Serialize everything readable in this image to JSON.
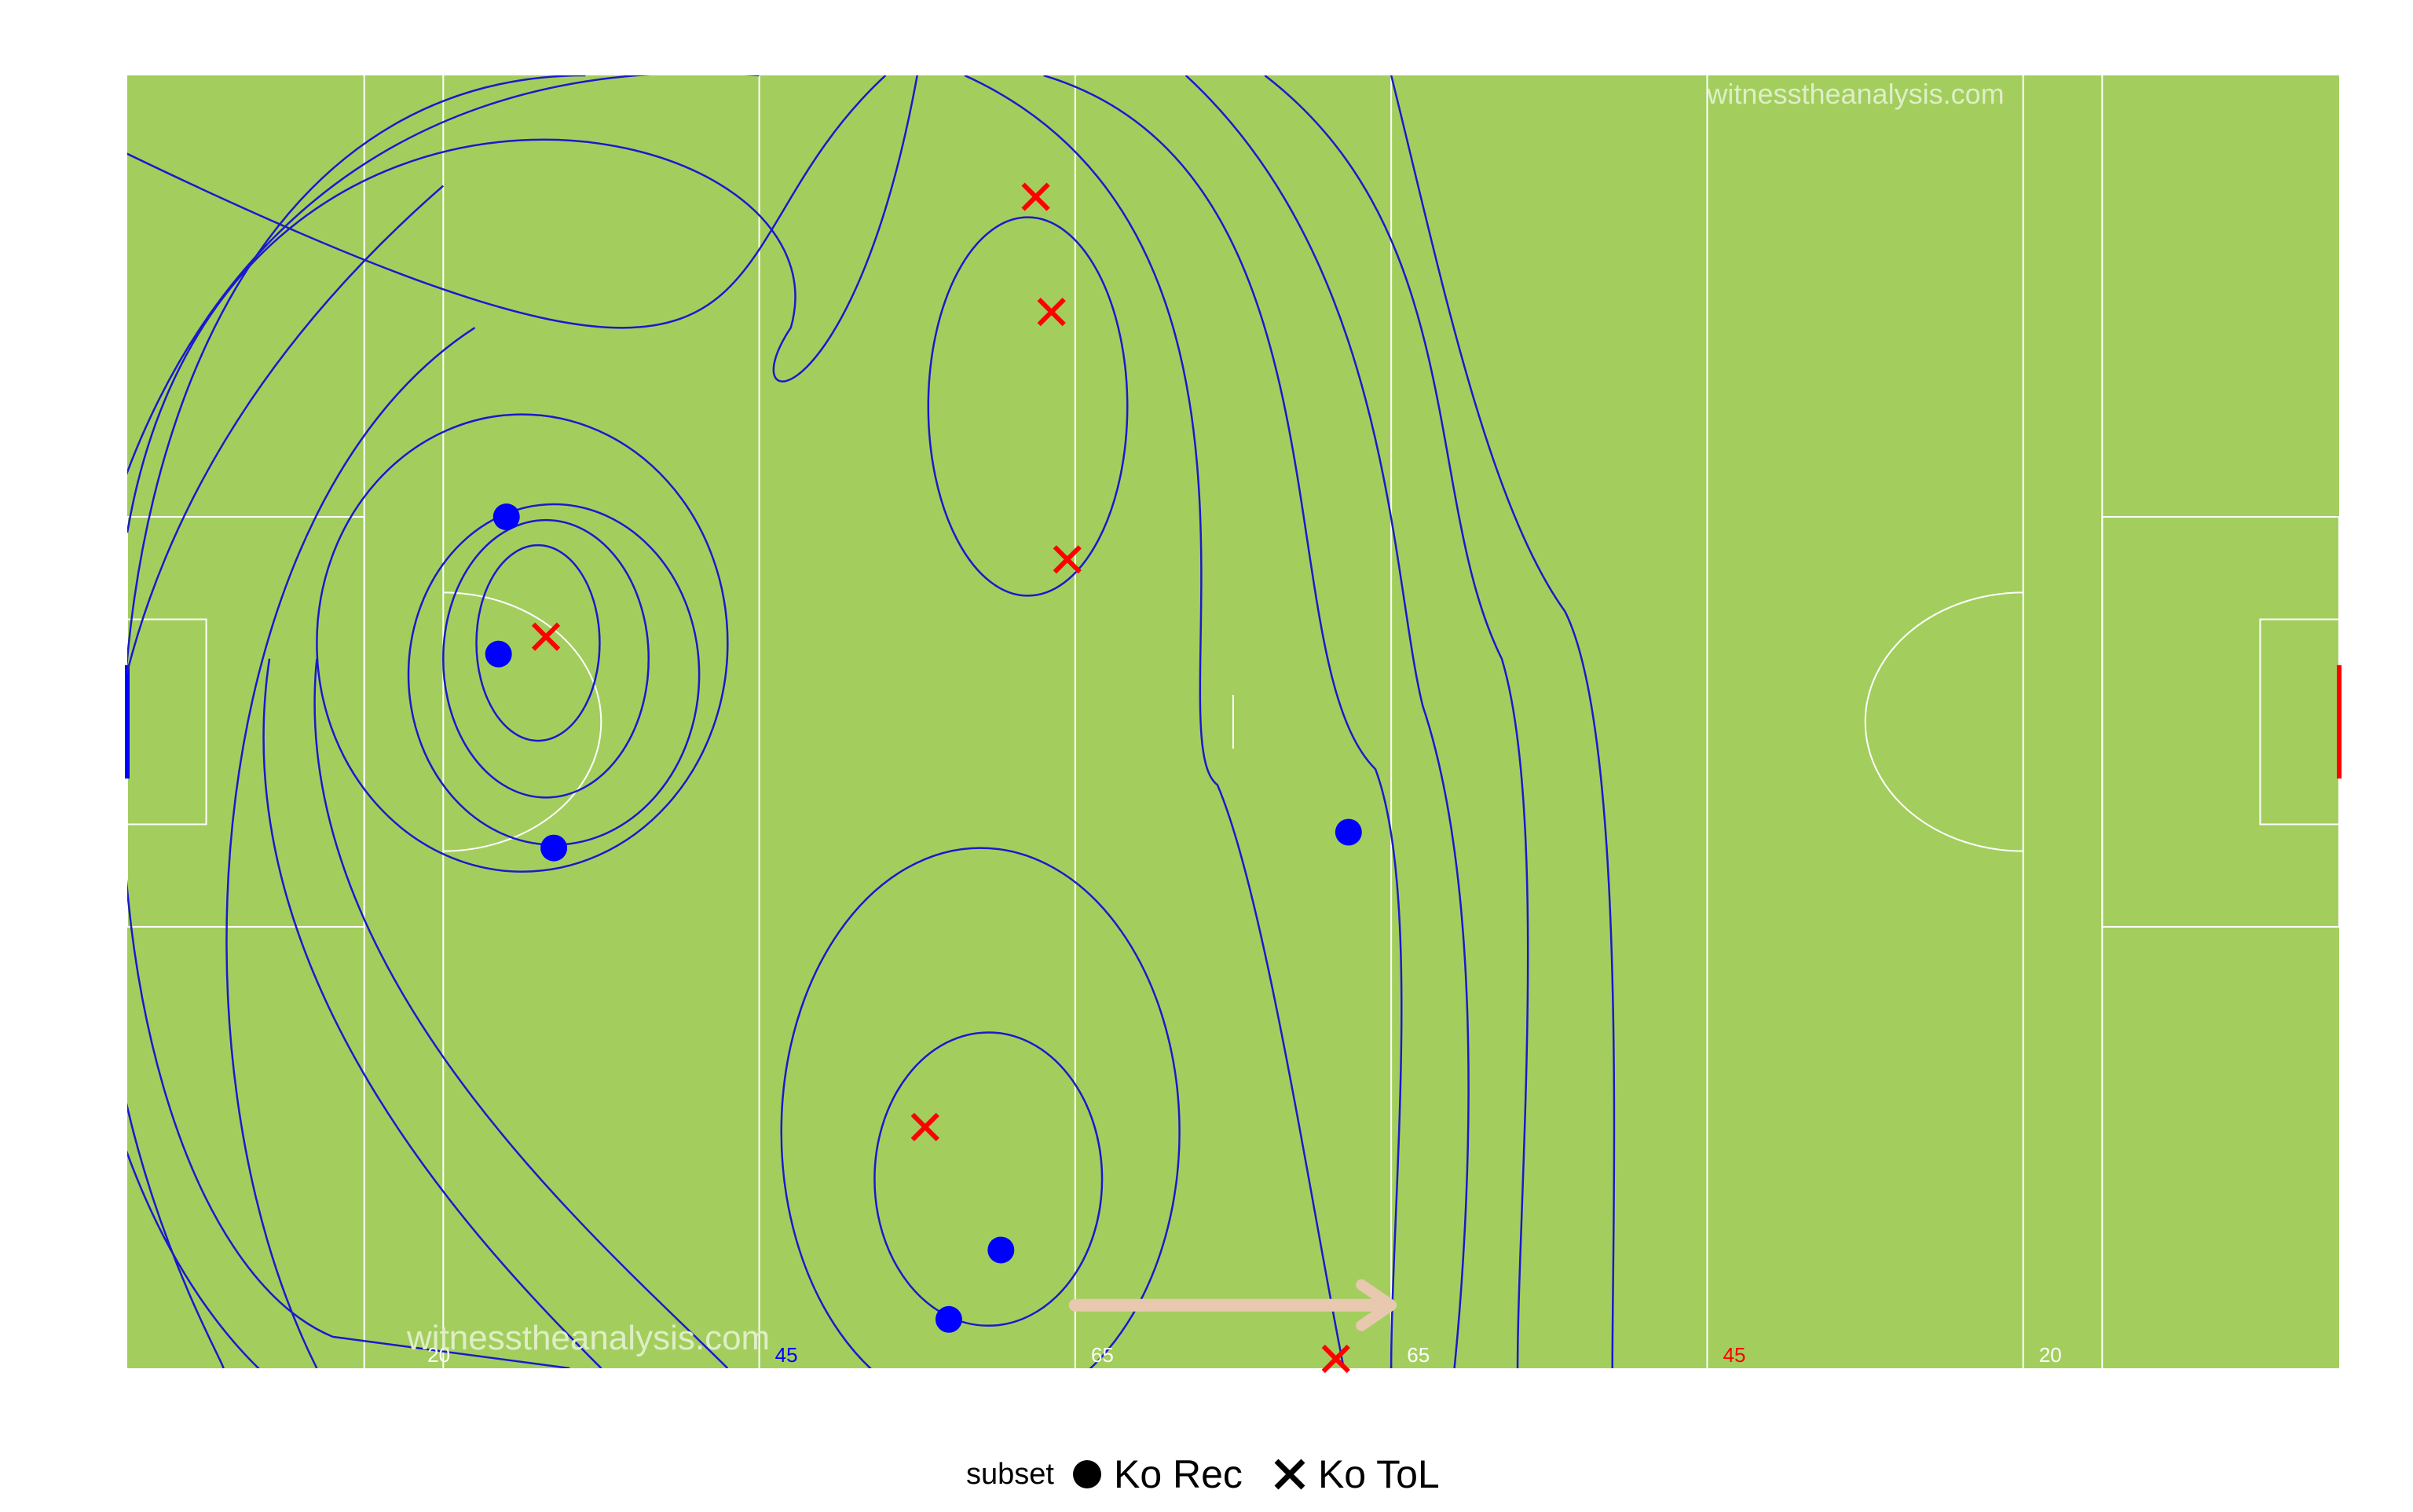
{
  "chart_data": {
    "type": "scatter",
    "title": "",
    "xlabel": "",
    "ylabel": "",
    "xlim": [
      0,
      140
    ],
    "ylim": [
      0,
      82
    ],
    "grid": false,
    "legend_position": "bottom",
    "legend_title": "subset",
    "pitch": {
      "background": "#a3ce5e",
      "line_color": "#ffffff",
      "contour_color": "#1a1acc",
      "left_goal_color": "#0000ff",
      "right_goal_color": "#ff0000",
      "line_labels": [
        {
          "x": 19,
          "text": "20",
          "color": "#ffffff"
        },
        {
          "x": 41,
          "text": "45",
          "color": "#0000ff"
        },
        {
          "x": 61,
          "text": "65",
          "color": "#ffffff"
        },
        {
          "x": 81,
          "text": "65",
          "color": "#ffffff"
        },
        {
          "x": 101,
          "text": "45",
          "color": "#ff0000"
        },
        {
          "x": 121,
          "text": "20",
          "color": "#ffffff"
        }
      ],
      "watermarks": [
        "witnesstheanalysis.com",
        "witnesstheanalysis.com"
      ],
      "direction_arrow": {
        "from": [
          60,
          4
        ],
        "to": [
          80,
          4
        ],
        "color": "#e8c9b0"
      }
    },
    "series": [
      {
        "name": "Ko Rec",
        "marker": "circle",
        "color": "#0000ff",
        "points": [
          {
            "x": 24,
            "y": 54
          },
          {
            "x": 23.5,
            "y": 45.3
          },
          {
            "x": 27,
            "y": 33
          },
          {
            "x": 77.3,
            "y": 34
          },
          {
            "x": 55.3,
            "y": 7.5
          },
          {
            "x": 52,
            "y": 3.1
          }
        ]
      },
      {
        "name": "Ko ToL",
        "marker": "cross",
        "color": "#ff0000",
        "points": [
          {
            "x": 57.5,
            "y": 74.3
          },
          {
            "x": 58.5,
            "y": 67
          },
          {
            "x": 59.5,
            "y": 51.3
          },
          {
            "x": 26.5,
            "y": 46.4
          },
          {
            "x": 50.5,
            "y": 15.3
          },
          {
            "x": 76.5,
            "y": 0.6
          }
        ]
      }
    ],
    "density_contours": [
      {
        "cx": 26,
        "cy": 46,
        "rx": 3.9,
        "ry": 6.2,
        "smooth": 1
      },
      {
        "cx": 26.5,
        "cy": 45,
        "rx": 6.5,
        "ry": 8.8,
        "smooth": 1
      },
      {
        "cx": 27,
        "cy": 44,
        "rx": 9.2,
        "ry": 10.8,
        "smooth": 1
      },
      {
        "cx": 25,
        "cy": 46,
        "rx": 13,
        "ry": 14.5,
        "smooth": 1
      },
      {
        "cx": 57,
        "cy": 61,
        "rx": 6.3,
        "ry": 12,
        "smooth": 1
      },
      {
        "cx": 54.5,
        "cy": 12,
        "rx": 7.2,
        "ry": 9.3,
        "smooth": 1
      },
      {
        "cx": 54,
        "cy": 15,
        "rx": 12.6,
        "ry": 18,
        "smooth": 1
      }
    ]
  }
}
